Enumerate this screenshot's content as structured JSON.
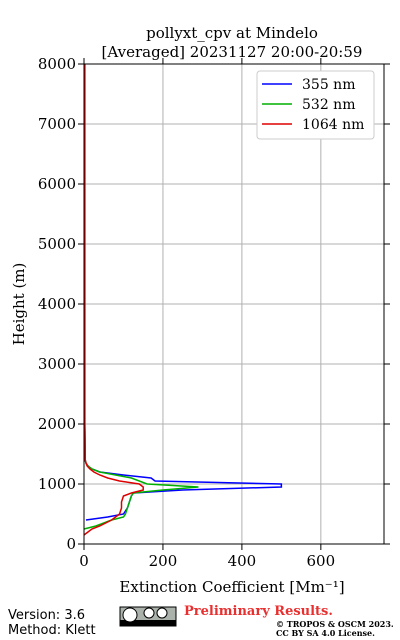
{
  "chart_data": {
    "type": "line",
    "title": "pollyxt_cpv at Mindelo",
    "subtitle": "[Averaged] 20231127 20:00-20:59",
    "x_label": "Extinction Coefficient [Mm⁻¹]",
    "y_label": "Height (m)",
    "y": [
      150,
      250,
      300,
      400,
      450,
      500,
      600,
      700,
      800,
      850,
      900,
      950,
      1000,
      1050,
      1100,
      1150,
      1200,
      1250,
      1300,
      1350,
      1400,
      1500,
      2000,
      3000,
      4000,
      5000,
      6000,
      7000,
      8000
    ],
    "series": [
      {
        "name": "355 nm",
        "color": "#0000ff",
        "values": [
          null,
          null,
          null,
          5,
          60,
          100,
          110,
          115,
          120,
          125,
          250,
          500,
          500,
          180,
          170,
          100,
          40,
          20,
          10,
          5,
          3,
          3,
          2,
          2,
          2,
          2,
          2,
          2,
          2
        ]
      },
      {
        "name": "532 nm",
        "color": "#00b000",
        "values": [
          null,
          0,
          30,
          70,
          100,
          105,
          110,
          115,
          120,
          125,
          200,
          290,
          160,
          140,
          120,
          80,
          40,
          20,
          10,
          5,
          3,
          3,
          2,
          2,
          2,
          2,
          2,
          2,
          2
        ]
      },
      {
        "name": "1064 nm",
        "color": "#dd0000",
        "values": [
          0,
          20,
          40,
          70,
          80,
          90,
          95,
          95,
          100,
          120,
          150,
          150,
          140,
          90,
          60,
          40,
          25,
          15,
          8,
          5,
          3,
          3,
          2,
          2,
          2,
          2,
          2,
          2,
          2
        ]
      }
    ],
    "xlim": [
      0,
      760
    ],
    "ylim": [
      0,
      8000
    ],
    "xticks": [
      0,
      200,
      400,
      600
    ],
    "yticks": [
      0,
      1000,
      2000,
      3000,
      4000,
      5000,
      6000,
      7000,
      8000
    ],
    "grid": true,
    "legend": "upper right"
  },
  "footer": {
    "version": "Version: 3.6",
    "method": "Method: Klett",
    "status": "Preliminary Results.",
    "copyright": "© TROPOS & OSCM 2023.",
    "license": "CC BY SA 4.0 License."
  }
}
